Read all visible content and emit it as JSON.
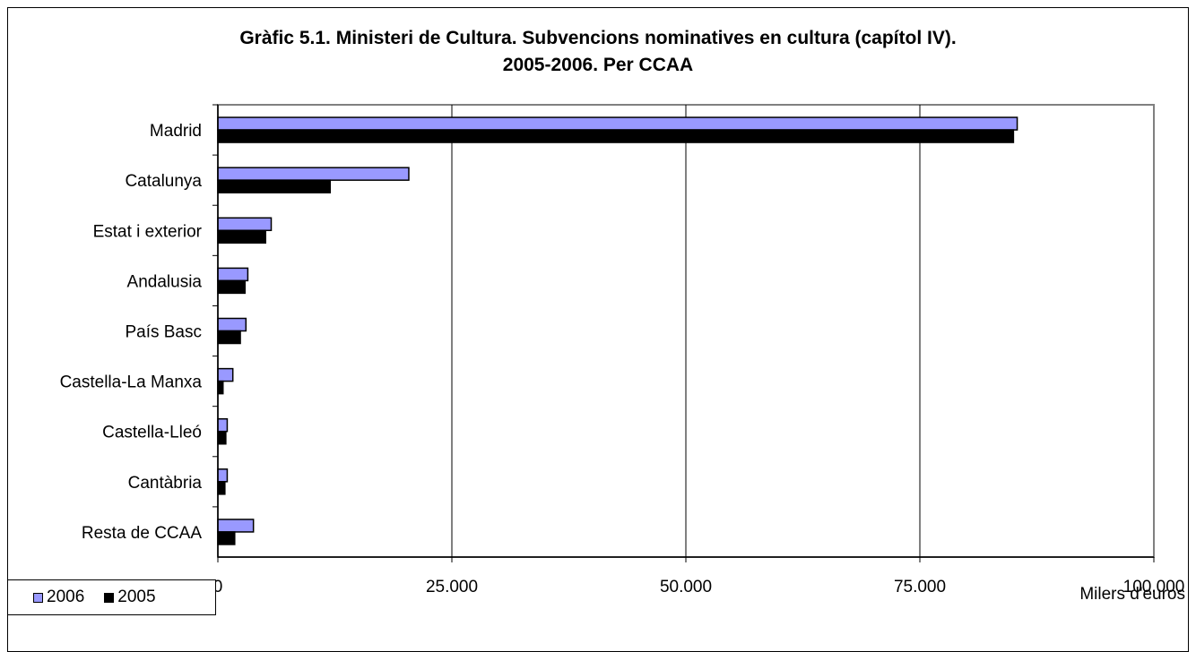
{
  "chart_data": {
    "type": "bar",
    "orientation": "horizontal",
    "title": "Gràfic 5.1. Ministeri de Cultura. Subvencions nominatives en cultura (capítol IV).",
    "subtitle": "2005-2006. Per CCAA",
    "categories": [
      "Madrid",
      "Catalunya",
      "Estat i exterior",
      "Andalusia",
      "País Basc",
      "Castella-La Manxa",
      "Castella-Lleó",
      "Cantàbria",
      "Resta de CCAA"
    ],
    "series": [
      {
        "name": "2006",
        "color": "#9999ff",
        "values": [
          85400,
          20400,
          5700,
          3200,
          3000,
          1600,
          1000,
          1000,
          3800
        ]
      },
      {
        "name": "2005",
        "color": "#000000",
        "values": [
          85000,
          12000,
          5100,
          2900,
          2400,
          550,
          850,
          750,
          1800
        ]
      }
    ],
    "xlim": [
      0,
      100000
    ],
    "xticks": [
      0,
      25000,
      50000,
      75000,
      100000
    ],
    "xtick_labels": [
      "0",
      "25.000",
      "50.000",
      "75.000",
      "100.000"
    ],
    "xlabel": "Milers d'euros",
    "grid": "vertical",
    "legend_position": "bottom-left"
  }
}
